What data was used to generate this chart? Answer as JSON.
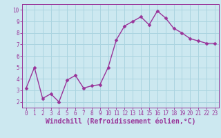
{
  "x": [
    0,
    1,
    2,
    3,
    4,
    5,
    6,
    7,
    8,
    9,
    10,
    11,
    12,
    13,
    14,
    15,
    16,
    17,
    18,
    19,
    20,
    21,
    22,
    23
  ],
  "y": [
    3.2,
    5.0,
    2.3,
    2.7,
    2.0,
    3.9,
    4.3,
    3.2,
    3.4,
    3.5,
    5.0,
    7.4,
    8.6,
    9.0,
    9.4,
    8.7,
    9.9,
    9.3,
    8.4,
    8.0,
    7.5,
    7.3,
    7.1,
    7.1
  ],
  "line_color": "#993399",
  "marker_color": "#993399",
  "bg_color": "#cce8f0",
  "grid_color": "#aad4e0",
  "xlabel": "Windchill (Refroidissement éolien,°C)",
  "xlabel_color": "#993399",
  "ylim": [
    1.5,
    10.5
  ],
  "xlim": [
    -0.5,
    23.5
  ],
  "yticks": [
    2,
    3,
    4,
    5,
    6,
    7,
    8,
    9,
    10
  ],
  "xticks": [
    0,
    1,
    2,
    3,
    4,
    5,
    6,
    7,
    8,
    9,
    10,
    11,
    12,
    13,
    14,
    15,
    16,
    17,
    18,
    19,
    20,
    21,
    22,
    23
  ],
  "tick_color": "#993399",
  "tick_fontsize": 5.5,
  "xlabel_fontsize": 7.0,
  "line_width": 1.0,
  "marker_size": 2.5
}
